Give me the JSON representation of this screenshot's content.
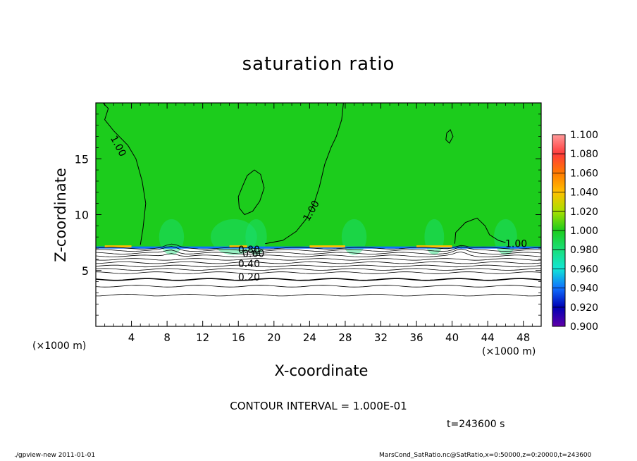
{
  "chart_data": {
    "type": "heatmap",
    "title": "saturation ratio",
    "xlabel": "X-coordinate",
    "ylabel": "Z-coordinate",
    "x_unit_label": "(×1000 m)",
    "xlim": [
      0,
      50
    ],
    "ylim": [
      0,
      20
    ],
    "x_ticks": [
      4,
      8,
      12,
      16,
      20,
      24,
      28,
      32,
      36,
      40,
      44,
      48
    ],
    "y_ticks": [
      5,
      10,
      15
    ],
    "colorbar": {
      "levels": [
        "1.100",
        "1.080",
        "1.060",
        "1.040",
        "1.020",
        "1.000",
        "0.980",
        "0.960",
        "0.940",
        "0.920",
        "0.900"
      ],
      "colors": [
        "#ff9a9a",
        "#ff3a3a",
        "#ff7a00",
        "#ffc000",
        "#a8e000",
        "#1ccc1c",
        "#1adf7a",
        "#11e6d6",
        "#1070ff",
        "#0000b4",
        "#6000a8"
      ]
    },
    "contour_labels": [
      "1.00",
      "1.00",
      "1.00",
      "0.80",
      "0.60",
      "0.40",
      "0.20"
    ],
    "contour_interval": "CONTOUR INTERVAL = 1.000E-01",
    "time_label": "t=243600 s"
  },
  "footer": {
    "left": "./gpview-new   2011-01-01",
    "right": "MarsCond_SatRatio.nc@SatRatio,x=0:50000,z=0:20000,t=243600"
  }
}
